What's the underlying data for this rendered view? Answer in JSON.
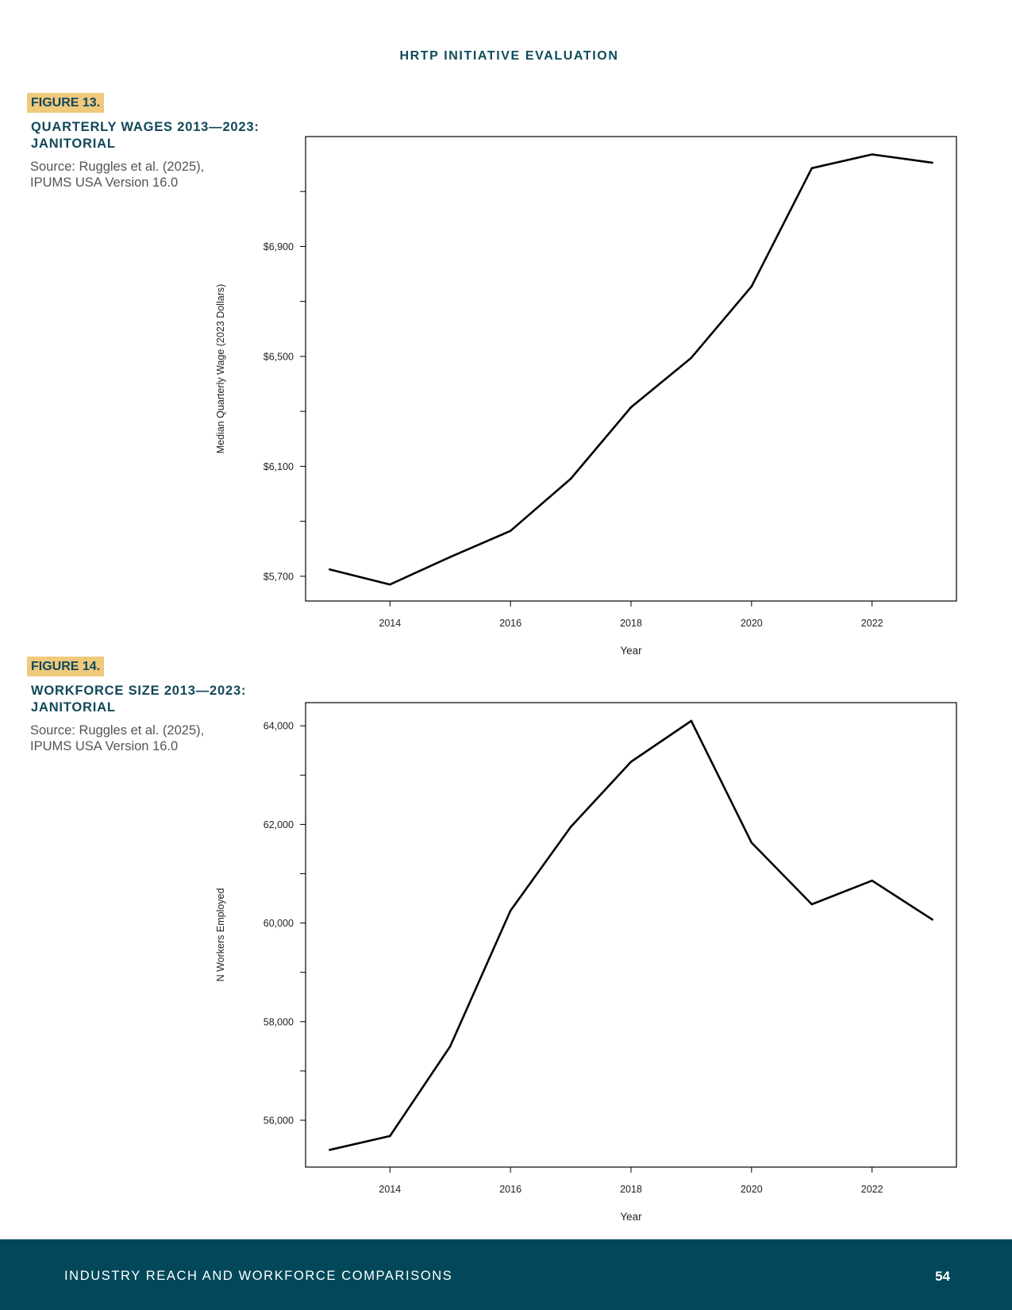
{
  "header": "HRTP INITIATIVE EVALUATION",
  "figures": [
    {
      "tag": "FIGURE 13.",
      "title": [
        "QUARTERLY WAGES 2013—2023:",
        "JANITORIAL"
      ],
      "source": [
        "Source: Ruggles et al. (2025),",
        "IPUMS USA Version 16.0"
      ]
    },
    {
      "tag": "FIGURE 14.",
      "title": [
        "WORKFORCE SIZE 2013—2023:",
        "JANITORIAL"
      ],
      "source": [
        "Source: Ruggles et al. (2025),",
        "IPUMS USA Version 16.0"
      ]
    }
  ],
  "chart_data": [
    {
      "type": "line",
      "x": [
        2013,
        2014,
        2015,
        2016,
        2017,
        2018,
        2019,
        2020,
        2021,
        2022,
        2023
      ],
      "series": [
        {
          "values": [
            5725,
            5670,
            5770,
            5865,
            6055,
            6315,
            6495,
            6755,
            7185,
            7235,
            7205
          ]
        }
      ],
      "xlabel": "Year",
      "ylabel": "Median Quarterly Wage (2023 Dollars)",
      "xticks": [
        2014,
        2016,
        2018,
        2020,
        2022
      ],
      "yticks": [
        5700,
        6100,
        6500,
        6900
      ],
      "ytick_labels": [
        "$5,700",
        "$6,100",
        "$6,500",
        "$6,900"
      ],
      "yminor": [
        5900,
        6300,
        6700,
        7100
      ],
      "xlim": [
        2012.6,
        2023.4
      ],
      "ylim": [
        5610,
        7300
      ],
      "grid": false,
      "line_color": "#000000"
    },
    {
      "type": "line",
      "x": [
        2013,
        2014,
        2015,
        2016,
        2017,
        2018,
        2019,
        2020,
        2021,
        2022,
        2023
      ],
      "series": [
        {
          "values": [
            55400,
            55680,
            57500,
            60250,
            61950,
            63270,
            64100,
            61630,
            60380,
            60860,
            60070
          ]
        }
      ],
      "xlabel": "Year",
      "ylabel": "N Workers Employed",
      "xticks": [
        2014,
        2016,
        2018,
        2020,
        2022
      ],
      "yticks": [
        56000,
        58000,
        60000,
        62000,
        64000
      ],
      "ytick_labels": [
        "56,000",
        "58,000",
        "60,000",
        "62,000",
        "64,000"
      ],
      "yminor": [
        57000,
        59000,
        61000,
        63000
      ],
      "xlim": [
        2012.6,
        2023.4
      ],
      "ylim": [
        55050,
        64470
      ],
      "grid": false,
      "line_color": "#000000"
    }
  ],
  "footer": {
    "text": "INDUSTRY REACH AND WORKFORCE COMPARISONS",
    "page": "54"
  }
}
